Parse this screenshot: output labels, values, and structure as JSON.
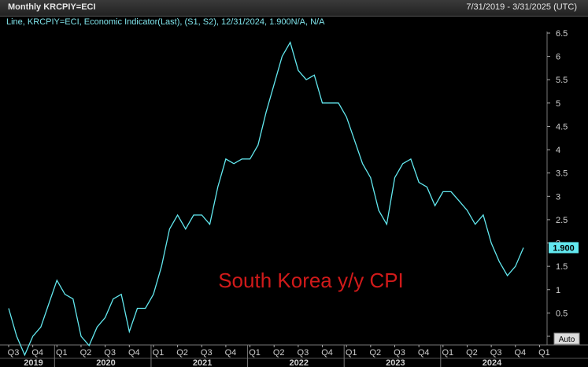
{
  "window": {
    "title": "Monthly KRCPIY=ECI",
    "date_range": "7/31/2019 - 3/31/2025 (UTC)"
  },
  "legend_text": "Line, KRCPIY=ECI, Economic Indicator(Last), (S1, S2), 12/31/2024, 1.900N/A, N/A",
  "last_value_label": "1.900",
  "auto_button_label": "Auto",
  "colors": {
    "line": "#62e8ef",
    "annotation": "#d11a1a",
    "background": "#000000",
    "grid": "#3a3a3a"
  },
  "chart_data": {
    "type": "line",
    "annotation": "South Korea y/y CPI",
    "ylim": [
      -0.5,
      6.8
    ],
    "y_ticks": [
      0,
      0.5,
      1,
      1.5,
      2,
      2.5,
      3,
      3.5,
      4,
      4.5,
      5,
      5.5,
      6,
      6.5
    ],
    "quarter_ticks": [
      "Q3",
      "Q4",
      "Q1",
      "Q2",
      "Q3",
      "Q4",
      "Q1",
      "Q2",
      "Q3",
      "Q4",
      "Q1",
      "Q2",
      "Q3",
      "Q4",
      "Q1",
      "Q2",
      "Q3",
      "Q4",
      "Q1",
      "Q2",
      "Q3",
      "Q4",
      "Q1"
    ],
    "years": [
      "2019",
      "2020",
      "2021",
      "2022",
      "2023",
      "2024"
    ],
    "series": [
      {
        "values": [
          0.6,
          0.0,
          -0.4,
          0.0,
          0.2,
          0.7,
          1.2,
          0.9,
          0.8,
          0.0,
          -0.2,
          0.2,
          0.4,
          0.8,
          0.9,
          0.1,
          0.6,
          0.6,
          0.9,
          1.5,
          2.3,
          2.6,
          2.3,
          2.6,
          2.6,
          2.4,
          3.2,
          3.8,
          3.7,
          3.8,
          3.8,
          4.1,
          4.8,
          5.4,
          6.0,
          6.3,
          5.7,
          5.5,
          5.6,
          5.0,
          5.0,
          5.0,
          4.7,
          4.2,
          3.7,
          3.4,
          2.7,
          2.4,
          3.4,
          3.7,
          3.8,
          3.3,
          3.2,
          2.8,
          3.1,
          3.1,
          2.9,
          2.7,
          2.4,
          2.6,
          2.0,
          1.6,
          1.3,
          1.5,
          1.9
        ]
      }
    ]
  }
}
